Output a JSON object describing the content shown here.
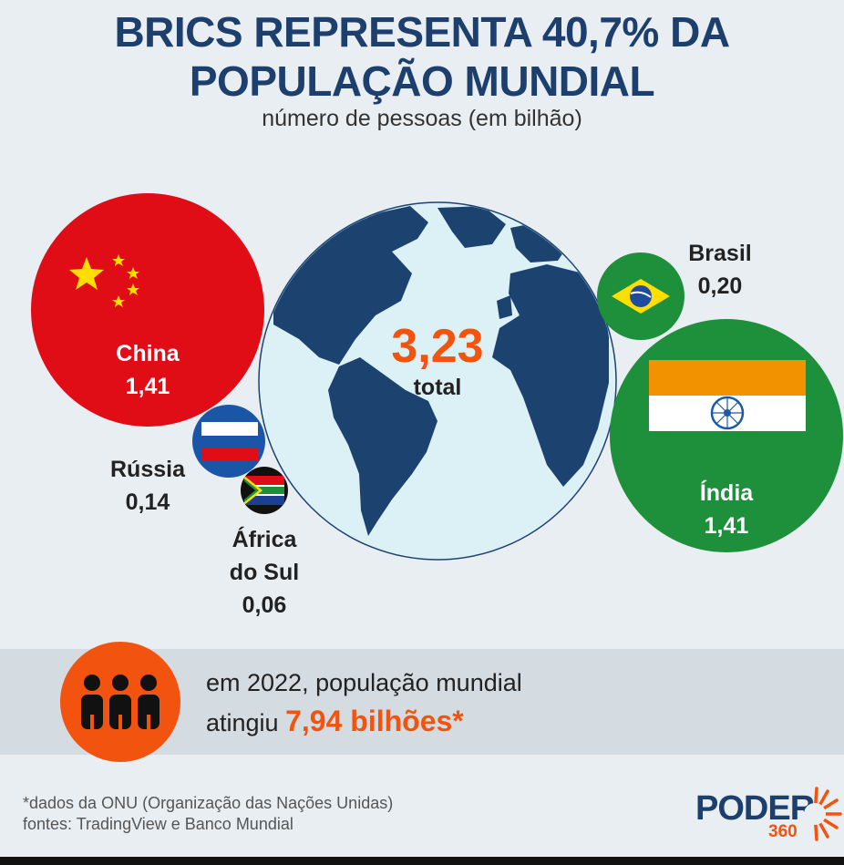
{
  "title_line1": "BRICS REPRESENTA 40,7% DA",
  "title_line2": "POPULAÇÃO MUNDIAL",
  "subtitle": "número de pessoas (em bilhão)",
  "chart_data": {
    "type": "bubble",
    "title": "BRICS REPRESENTA 40,7% DA POPULAÇÃO MUNDIAL",
    "subtitle": "número de pessoas (em bilhão)",
    "categories": [
      "China",
      "Índia",
      "Brasil",
      "Rússia",
      "África do Sul"
    ],
    "values": [
      1.41,
      1.41,
      0.2,
      0.14,
      0.06
    ],
    "value_labels": [
      "1,41",
      "1,41",
      "0,20",
      "0,14",
      "0,06"
    ],
    "total": 3.23,
    "total_label": "3,23",
    "total_caption": "total",
    "country_labels": {
      "china": "China",
      "india": "Índia",
      "brasil": "Brasil",
      "russia": "Rússia",
      "africa_line1": "África",
      "africa_line2": "do Sul"
    },
    "colors": {
      "china": "#e00d17",
      "india": "#1e8f3b",
      "brasil": "#1e8f3b",
      "russia": "#1a55a8",
      "africa": "#111111",
      "globe_ocean": "#dcf1f5",
      "globe_land": "#1c4270",
      "total": "#f2530f"
    }
  },
  "band": {
    "line1": "em 2022, população mundial",
    "line2_prefix": "atingiu",
    "highlight": "7,94 bilhões*"
  },
  "footnote": "*dados da ONU (Organização das Nações Unidas)",
  "sources": "fontes: TradingView e Banco Mundial",
  "logo": "PODER",
  "logo_suffix": "360",
  "icons": [
    "people-icon",
    "china-flag-icon",
    "india-flag-icon",
    "brazil-flag-icon",
    "russia-flag-icon",
    "south-africa-flag-icon",
    "globe-icon",
    "sun-rays-icon"
  ]
}
